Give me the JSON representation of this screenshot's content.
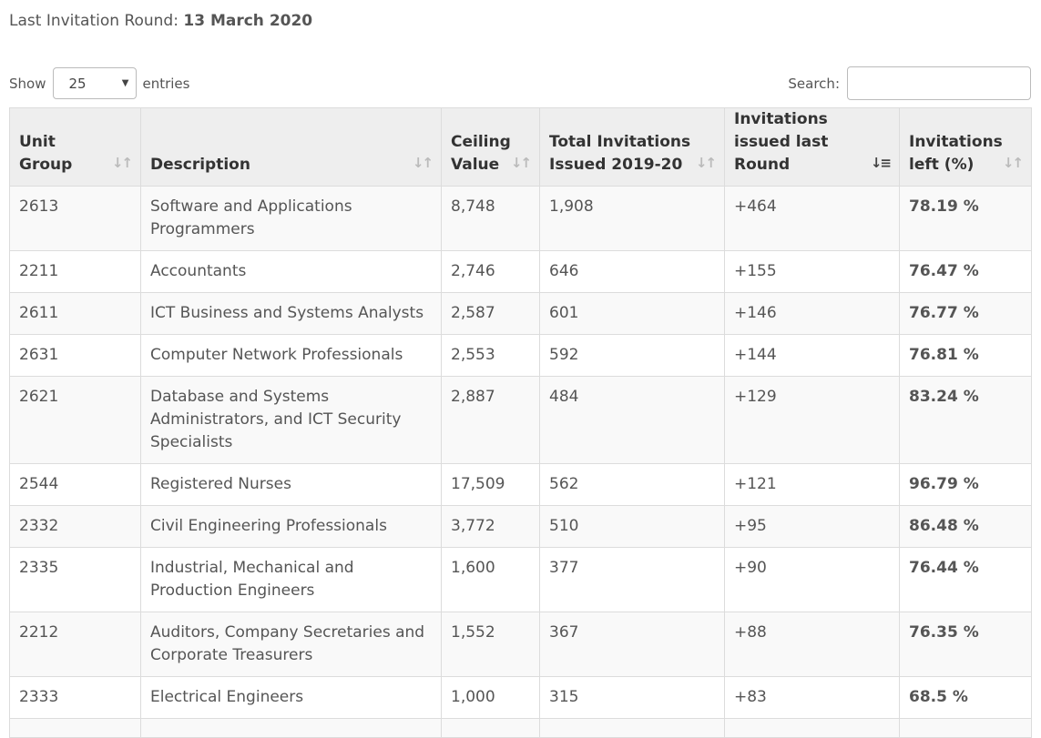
{
  "round": {
    "label": "Last Invitation Round:",
    "date": "13 March 2020"
  },
  "length": {
    "show_label": "Show",
    "value": "25",
    "entries_label": "entries"
  },
  "search": {
    "label": "Search:",
    "value": ""
  },
  "columns": [
    {
      "label": "Unit Group",
      "sort": "unsorted"
    },
    {
      "label": "Description",
      "sort": "unsorted"
    },
    {
      "label": "Ceiling Value",
      "sort": "unsorted"
    },
    {
      "label": "Total Invitations Issued 2019-20",
      "sort": "unsorted"
    },
    {
      "label": "Invitations issued last Round",
      "sort": "descending"
    },
    {
      "label": "Invitations left (%)",
      "sort": "unsorted"
    }
  ],
  "rows": [
    {
      "unit": "2613",
      "desc": "Software and Applications Programmers",
      "ceiling": "8,748",
      "total": "1,908",
      "last": "+464",
      "left": "78.19 %"
    },
    {
      "unit": "2211",
      "desc": "Accountants",
      "ceiling": "2,746",
      "total": "646",
      "last": "+155",
      "left": "76.47 %"
    },
    {
      "unit": "2611",
      "desc": "ICT Business and Systems Analysts",
      "ceiling": "2,587",
      "total": "601",
      "last": "+146",
      "left": "76.77 %"
    },
    {
      "unit": "2631",
      "desc": "Computer Network Professionals",
      "ceiling": "2,553",
      "total": "592",
      "last": "+144",
      "left": "76.81 %"
    },
    {
      "unit": "2621",
      "desc": "Database and Systems Administrators, and ICT Security Specialists",
      "ceiling": "2,887",
      "total": "484",
      "last": "+129",
      "left": "83.24 %"
    },
    {
      "unit": "2544",
      "desc": "Registered Nurses",
      "ceiling": "17,509",
      "total": "562",
      "last": "+121",
      "left": "96.79 %"
    },
    {
      "unit": "2332",
      "desc": "Civil Engineering Professionals",
      "ceiling": "3,772",
      "total": "510",
      "last": "+95",
      "left": "86.48 %"
    },
    {
      "unit": "2335",
      "desc": "Industrial, Mechanical and Production Engineers",
      "ceiling": "1,600",
      "total": "377",
      "last": "+90",
      "left": "76.44 %"
    },
    {
      "unit": "2212",
      "desc": "Auditors, Company Secretaries and Corporate Treasurers",
      "ceiling": "1,552",
      "total": "367",
      "last": "+88",
      "left": "76.35 %"
    },
    {
      "unit": "2333",
      "desc": "Electrical Engineers",
      "ceiling": "1,000",
      "total": "315",
      "last": "+83",
      "left": "68.5 %"
    },
    {
      "unit": "",
      "desc": "",
      "ceiling": "",
      "total": "",
      "last": "",
      "left": ""
    }
  ]
}
